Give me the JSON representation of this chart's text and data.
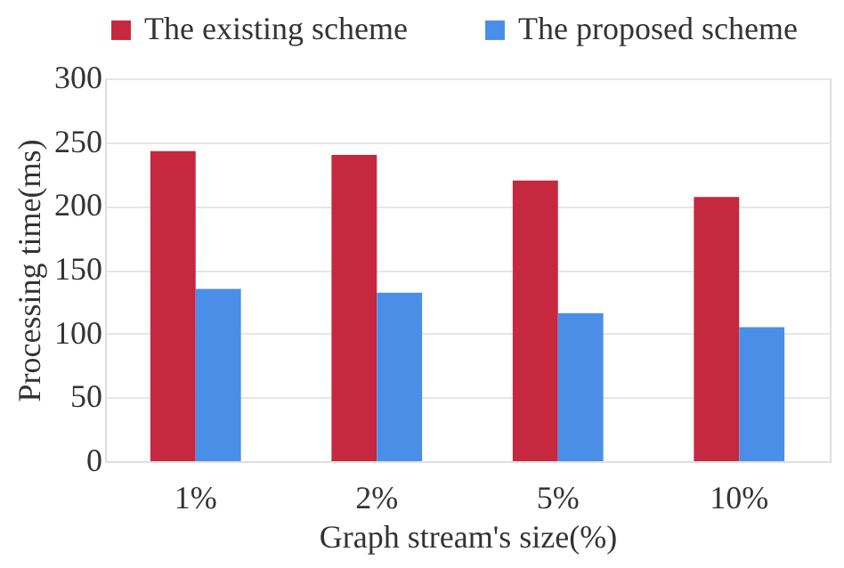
{
  "chart_data": {
    "type": "bar",
    "xlabel": "Graph stream's size(%)",
    "ylabel": "Processing time(ms)",
    "categories": [
      "1%",
      "2%",
      "5%",
      "10%"
    ],
    "series": [
      {
        "name": "The existing scheme",
        "color": "#c5283f",
        "values": [
          243,
          240,
          220,
          207
        ]
      },
      {
        "name": "The proposed scheme",
        "color": "#4a8ee8",
        "values": [
          135,
          132,
          116,
          105
        ]
      }
    ],
    "ylim": [
      0,
      300
    ],
    "yticks": [
      0,
      50,
      100,
      150,
      200,
      250,
      300
    ],
    "grid": "y",
    "legend": "top"
  }
}
